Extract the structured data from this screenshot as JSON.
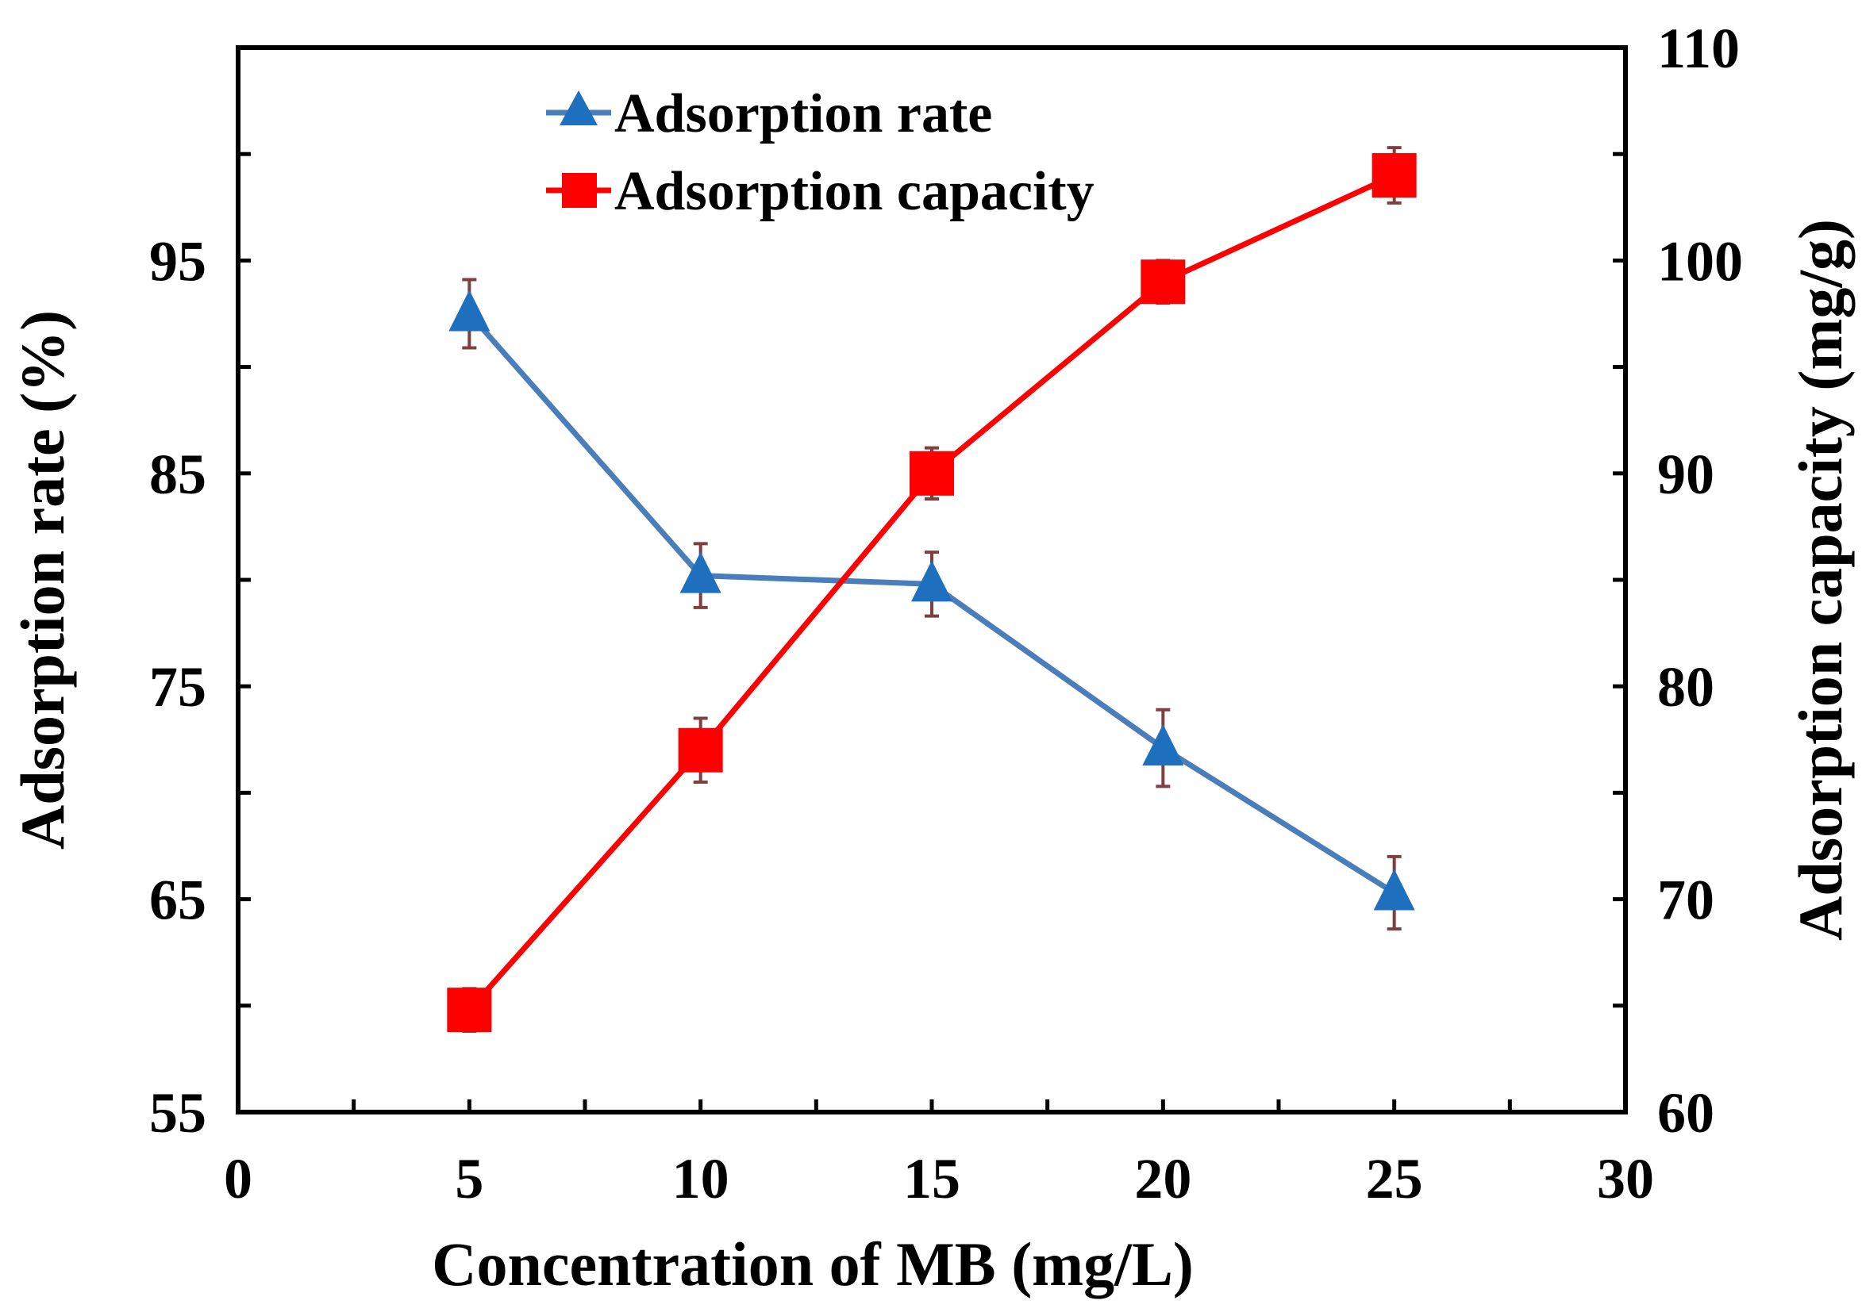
{
  "chart_data": {
    "type": "line",
    "xlabel": "Concentration of MB (mg/L)",
    "ylabel_left": "Adsorption rate (%)",
    "ylabel_right": "Adsorption capacity (mg/g)",
    "xlim": [
      0,
      30
    ],
    "xticks": [
      0,
      5,
      10,
      15,
      20,
      25,
      30
    ],
    "ylim_left": [
      55,
      105
    ],
    "yticks_left": [
      55,
      65,
      75,
      85,
      95
    ],
    "ylim_right": [
      60,
      110
    ],
    "yticks_right": [
      60,
      70,
      80,
      90,
      100,
      110
    ],
    "grid": false,
    "legend_position": "top-center",
    "series": [
      {
        "name": "Adsorption rate",
        "axis": "left",
        "marker": "triangle",
        "color": "#4A7EBB",
        "marker_color": "#1F6FBF",
        "x": [
          5,
          10,
          15,
          20,
          25
        ],
        "y": [
          92.5,
          80.2,
          79.8,
          72.1,
          65.3
        ],
        "error": [
          1.6,
          1.5,
          1.5,
          1.8,
          1.7
        ]
      },
      {
        "name": "Adsorption capacity",
        "axis": "right",
        "marker": "square",
        "color": "#FF0000",
        "marker_color": "#FF0000",
        "x": [
          5,
          10,
          15,
          20,
          25
        ],
        "y": [
          64.8,
          77.0,
          90.0,
          99.0,
          104.0
        ],
        "error": [
          1.0,
          1.5,
          1.2,
          1.0,
          1.3
        ]
      }
    ],
    "error_bar_color": "#7F3F3F"
  }
}
